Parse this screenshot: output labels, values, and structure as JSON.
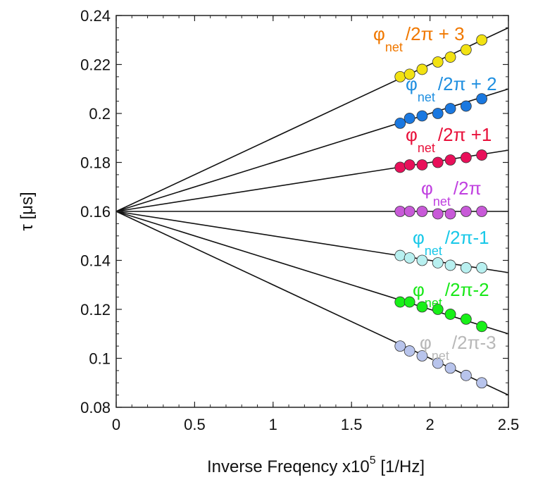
{
  "chart_data": {
    "type": "scatter",
    "xlabel": {
      "main": "Inverse Freqency x10",
      "sup": "5",
      "tail": " [1/Hz]"
    },
    "ylabel": "τ [μs]",
    "xlim": [
      0,
      2.5
    ],
    "ylim": [
      0.08,
      0.24
    ],
    "x_ticks": [
      "0",
      "0.5",
      "1",
      "1.5",
      "2",
      "2.5"
    ],
    "y_ticks": [
      "0.08",
      "0.1",
      "0.12",
      "0.14",
      "0.16",
      "0.18",
      "0.2",
      "0.22",
      "0.24"
    ],
    "grid": false,
    "fit_intercept": [
      0,
      0.16
    ],
    "series": [
      {
        "label": {
          "phi": "φ",
          "sub": "net",
          "rest": "/2π + 3"
        },
        "color": "#f07800",
        "fill": "#f2e212",
        "end": [
          2.5,
          0.235
        ],
        "points": [
          [
            1.81,
            0.215
          ],
          [
            1.87,
            0.216
          ],
          [
            1.95,
            0.218
          ],
          [
            2.05,
            0.221
          ],
          [
            2.13,
            0.223
          ],
          [
            2.23,
            0.226
          ],
          [
            2.33,
            0.23
          ]
        ]
      },
      {
        "label": {
          "phi": "φ",
          "sub": "net",
          "rest": "/2π + 2"
        },
        "color": "#1f8fe0",
        "fill": "#1a78e0",
        "end": [
          2.5,
          0.21
        ],
        "points": [
          [
            1.81,
            0.196
          ],
          [
            1.87,
            0.198
          ],
          [
            1.95,
            0.199
          ],
          [
            2.05,
            0.2
          ],
          [
            2.13,
            0.202
          ],
          [
            2.23,
            0.203
          ],
          [
            2.33,
            0.206
          ]
        ]
      },
      {
        "label": {
          "phi": "φ",
          "sub": "net",
          "rest": "/2π +1"
        },
        "color": "#e8103a",
        "fill": "#e8105a",
        "end": [
          2.5,
          0.185
        ],
        "points": [
          [
            1.81,
            0.178
          ],
          [
            1.87,
            0.179
          ],
          [
            1.95,
            0.179
          ],
          [
            2.05,
            0.18
          ],
          [
            2.13,
            0.181
          ],
          [
            2.23,
            0.182
          ],
          [
            2.33,
            0.183
          ]
        ]
      },
      {
        "label": {
          "phi": "φ",
          "sub": "net",
          "rest": "/2π"
        },
        "color": "#c040e0",
        "fill": "#c85ad8",
        "end": [
          2.5,
          0.16
        ],
        "points": [
          [
            1.81,
            0.16
          ],
          [
            1.87,
            0.16
          ],
          [
            1.95,
            0.16
          ],
          [
            2.05,
            0.159
          ],
          [
            2.13,
            0.159
          ],
          [
            2.23,
            0.16
          ],
          [
            2.33,
            0.16
          ]
        ]
      },
      {
        "label": {
          "phi": "φ",
          "sub": "net",
          "rest": "/2π-1"
        },
        "color": "#18c8e8",
        "fill": "#b8f0f0",
        "end": [
          2.5,
          0.135
        ],
        "points": [
          [
            1.81,
            0.142
          ],
          [
            1.87,
            0.141
          ],
          [
            1.95,
            0.14
          ],
          [
            2.05,
            0.139
          ],
          [
            2.13,
            0.138
          ],
          [
            2.23,
            0.137
          ],
          [
            2.33,
            0.137
          ]
        ]
      },
      {
        "label": {
          "phi": "φ",
          "sub": "net",
          "rest": "/2π-2"
        },
        "color": "#18e818",
        "fill": "#18f018",
        "end": [
          2.5,
          0.11
        ],
        "points": [
          [
            1.81,
            0.123
          ],
          [
            1.87,
            0.123
          ],
          [
            1.95,
            0.121
          ],
          [
            2.05,
            0.12
          ],
          [
            2.13,
            0.118
          ],
          [
            2.23,
            0.116
          ],
          [
            2.33,
            0.113
          ]
        ]
      },
      {
        "label": {
          "phi": "φ",
          "sub": "net",
          "rest": "/2π-3"
        },
        "color": "#b8b8b8",
        "fill": "#b8c4ec",
        "end": [
          2.5,
          0.085
        ],
        "points": [
          [
            1.81,
            0.105
          ],
          [
            1.87,
            0.103
          ],
          [
            1.95,
            0.101
          ],
          [
            2.05,
            0.098
          ],
          [
            2.13,
            0.096
          ],
          [
            2.23,
            0.093
          ],
          [
            2.33,
            0.09
          ]
        ]
      }
    ]
  }
}
